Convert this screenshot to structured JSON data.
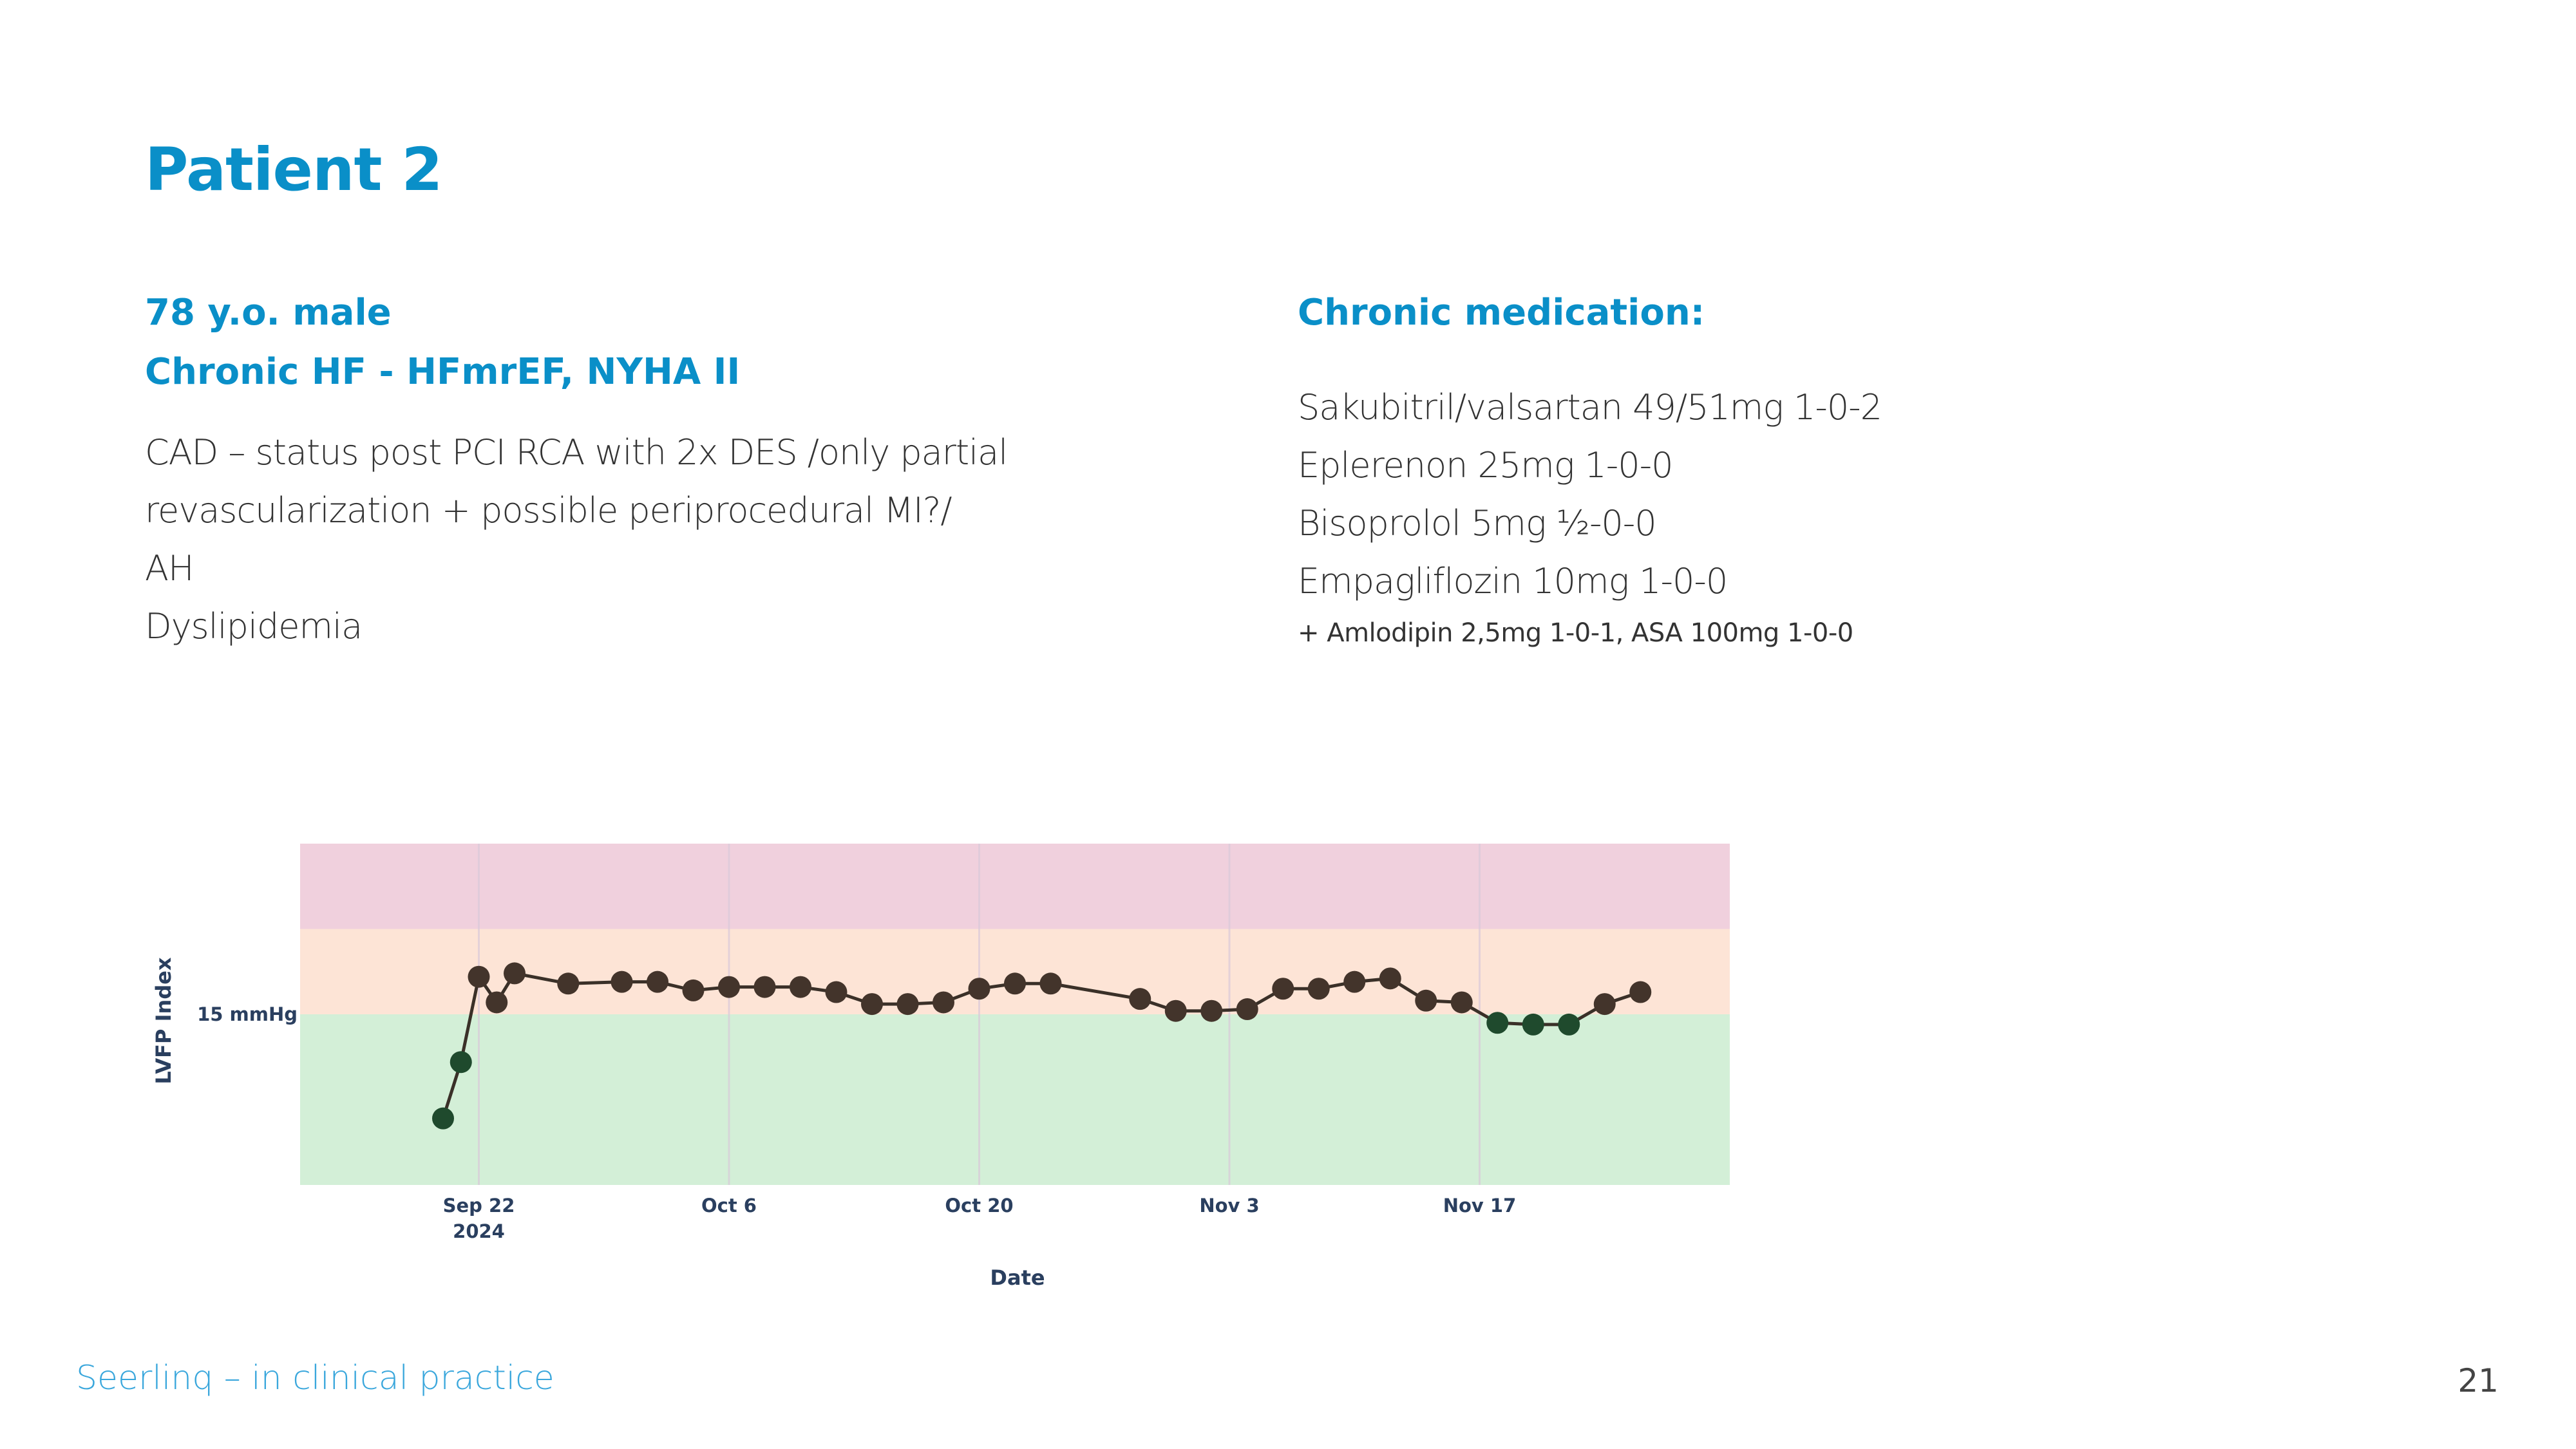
{
  "slide": {
    "title": "Patient 2",
    "page_number": "21",
    "footer": "Seerlinq – in clinical practice"
  },
  "patient": {
    "demographics": "78 y.o. male",
    "diagnosis": "Chronic HF - HFmrEF, NYHA II",
    "history": [
      "CAD – status post PCI RCA with 2x DES /only partial",
      "revascularization + possible periprocedural MI?/",
      "AH",
      "Dyslipidemia"
    ]
  },
  "medication": {
    "heading": "Chronic medication:",
    "items": [
      "Sakubitril/valsartan 49/51mg 1-0-2",
      "Eplerenon 25mg 1-0-0",
      "Bisoprolol 5mg ½-0-0",
      "Empagliflozin 10mg 1-0-0"
    ],
    "note": "+ Amlodipin 2,5mg 1-0-1, ASA 100mg 1-0-0"
  },
  "chart_data": {
    "type": "line",
    "xlabel": "Date",
    "ylabel": "LVFP Index",
    "x_ticks": [
      {
        "date": "2024-09-22",
        "label": "Sep 22",
        "sublabel": "2024"
      },
      {
        "date": "2024-10-06",
        "label": "Oct 6",
        "sublabel": ""
      },
      {
        "date": "2024-10-20",
        "label": "Oct 20",
        "sublabel": ""
      },
      {
        "date": "2024-11-03",
        "label": "Nov 3",
        "sublabel": ""
      },
      {
        "date": "2024-11-17",
        "label": "Nov 17",
        "sublabel": ""
      }
    ],
    "xlim": [
      "2024-09-12",
      "2024-12-01"
    ],
    "ylim": [
      5,
      25
    ],
    "y_ticks": [
      {
        "value": 15,
        "label": "15 mmHg"
      }
    ],
    "zones": [
      {
        "from": 5,
        "to": 15,
        "color": "#d3efd7"
      },
      {
        "from": 15,
        "to": 20,
        "color": "#fde4d6"
      },
      {
        "from": 20,
        "to": 25,
        "color": "#f0d0dd"
      }
    ],
    "marker_colors": {
      "above": "#43342b",
      "below": "#1f4a2d",
      "line": "#3a3028"
    },
    "points": [
      {
        "x": "2024-09-20",
        "y": 8.9
      },
      {
        "x": "2024-09-21",
        "y": 12.2
      },
      {
        "x": "2024-09-22",
        "y": 17.2
      },
      {
        "x": "2024-09-23",
        "y": 15.7
      },
      {
        "x": "2024-09-24",
        "y": 17.4
      },
      {
        "x": "2024-09-27",
        "y": 16.8
      },
      {
        "x": "2024-09-30",
        "y": 16.9
      },
      {
        "x": "2024-10-02",
        "y": 16.9
      },
      {
        "x": "2024-10-04",
        "y": 16.4
      },
      {
        "x": "2024-10-06",
        "y": 16.6
      },
      {
        "x": "2024-10-08",
        "y": 16.6
      },
      {
        "x": "2024-10-10",
        "y": 16.6
      },
      {
        "x": "2024-10-12",
        "y": 16.3
      },
      {
        "x": "2024-10-14",
        "y": 15.6
      },
      {
        "x": "2024-10-16",
        "y": 15.6
      },
      {
        "x": "2024-10-18",
        "y": 15.7
      },
      {
        "x": "2024-10-20",
        "y": 16.5
      },
      {
        "x": "2024-10-22",
        "y": 16.8
      },
      {
        "x": "2024-10-24",
        "y": 16.8
      },
      {
        "x": "2024-10-29",
        "y": 15.9
      },
      {
        "x": "2024-10-31",
        "y": 15.2
      },
      {
        "x": "2024-11-02",
        "y": 15.2
      },
      {
        "x": "2024-11-04",
        "y": 15.3
      },
      {
        "x": "2024-11-06",
        "y": 16.5
      },
      {
        "x": "2024-11-08",
        "y": 16.5
      },
      {
        "x": "2024-11-10",
        "y": 16.9
      },
      {
        "x": "2024-11-12",
        "y": 17.1
      },
      {
        "x": "2024-11-14",
        "y": 15.8
      },
      {
        "x": "2024-11-16",
        "y": 15.7
      },
      {
        "x": "2024-11-18",
        "y": 14.5
      },
      {
        "x": "2024-11-20",
        "y": 14.4
      },
      {
        "x": "2024-11-22",
        "y": 14.4
      },
      {
        "x": "2024-11-24",
        "y": 15.6
      },
      {
        "x": "2024-11-26",
        "y": 16.3
      }
    ]
  }
}
